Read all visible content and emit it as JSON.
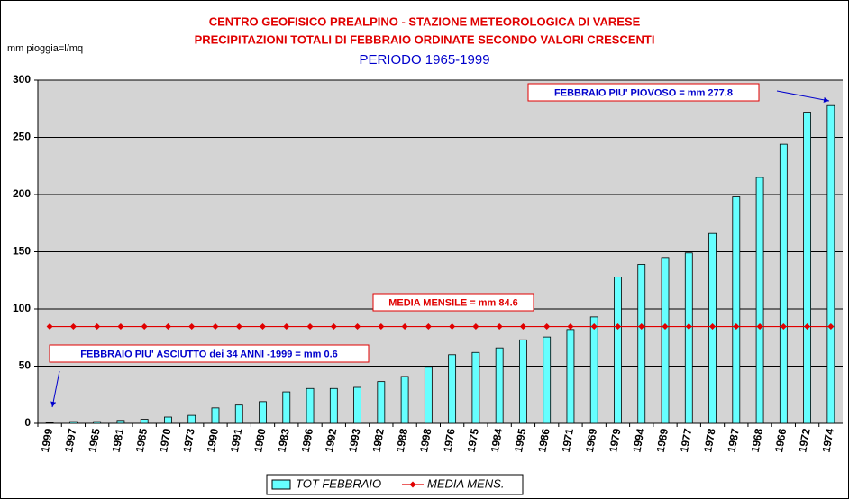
{
  "chart_data": {
    "type": "bar",
    "title": "CENTRO GEOFISICO PREALPINO - STAZIONE METEOROLOGICA DI VARESE",
    "subtitle": "PRECIPITAZIONI TOTALI DI FEBBRAIO ORDINATE SECONDO VALORI CRESCENTI",
    "period": "PERIODO 1965-1999",
    "y_label": "mm pioggia=l/mq",
    "categories": [
      "1999",
      "1997",
      "1965",
      "1981",
      "1985",
      "1970",
      "1973",
      "1990",
      "1991",
      "1980",
      "1983",
      "1996",
      "1992",
      "1993",
      "1982",
      "1988",
      "1998",
      "1976",
      "1975",
      "1984",
      "1995",
      "1986",
      "1971",
      "1969",
      "1979",
      "1994",
      "1989",
      "1977",
      "1978",
      "1987",
      "1968",
      "1966",
      "1972",
      "1974"
    ],
    "series": [
      {
        "name": "TOT FEBBRAIO",
        "type": "bar",
        "color": "#66ffff",
        "values": [
          0.6,
          1.5,
          1.5,
          2.5,
          3.5,
          5.5,
          7,
          13.5,
          16,
          19,
          27.5,
          30.5,
          30.5,
          31.5,
          36.5,
          41,
          49,
          60,
          62,
          66,
          73,
          75.5,
          82,
          93,
          128,
          139,
          145,
          149,
          166,
          198,
          215,
          244,
          272,
          277.8
        ]
      },
      {
        "name": "MEDIA MENS.",
        "type": "line",
        "color": "#e00000",
        "values": [
          84.6,
          84.6,
          84.6,
          84.6,
          84.6,
          84.6,
          84.6,
          84.6,
          84.6,
          84.6,
          84.6,
          84.6,
          84.6,
          84.6,
          84.6,
          84.6,
          84.6,
          84.6,
          84.6,
          84.6,
          84.6,
          84.6,
          84.6,
          84.6,
          84.6,
          84.6,
          84.6,
          84.6,
          84.6,
          84.6,
          84.6,
          84.6,
          84.6,
          84.6
        ]
      }
    ],
    "annotations": [
      {
        "text": "FEBBRAIO PIU' PIOVOSO  = mm  277.8",
        "color": "#0000cc"
      },
      {
        "text": "MEDIA MENSILE = mm 84.6",
        "color": "#e00000"
      },
      {
        "text": "FEBBRAIO PIU' ASCIUTTO dei 34 ANNI -1999  = mm 0.6",
        "color": "#0000cc"
      }
    ],
    "ylim": [
      0,
      300
    ],
    "yticks": [
      0,
      50,
      100,
      150,
      200,
      250,
      300
    ],
    "grid": true
  }
}
